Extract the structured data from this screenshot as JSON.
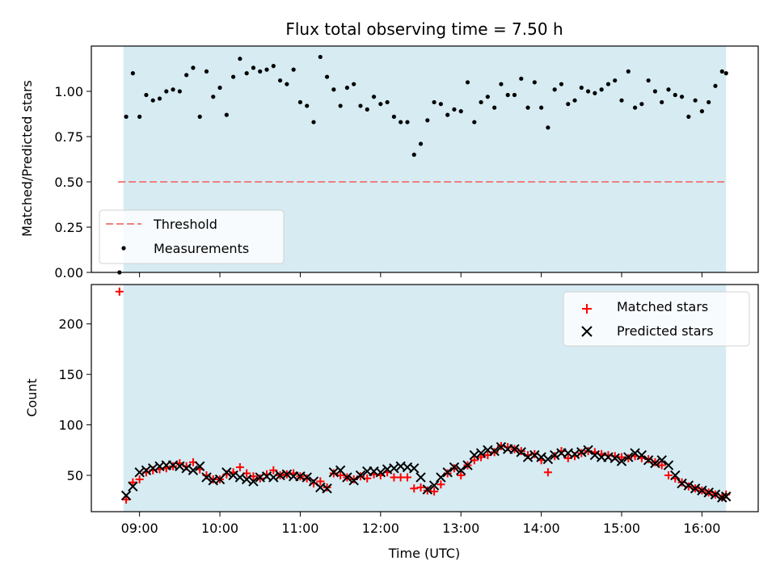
{
  "chart_data": [
    {
      "type": "scatter",
      "title": "Flux total observing time = 7.50 h",
      "xlabel": "Time (UTC)",
      "ylabel": "Matched/Predicted stars",
      "ylim": [
        0,
        1.25
      ],
      "yticks": [
        "0.00",
        "0.25",
        "0.50",
        "0.75",
        "1.00"
      ],
      "xlim_hours": [
        8.4,
        16.7
      ],
      "xticks": [
        "09:00",
        "10:00",
        "11:00",
        "12:00",
        "13:00",
        "14:00",
        "15:00",
        "16:00"
      ],
      "shaded_span": {
        "from": "08:48",
        "to": "16:18",
        "color": "#add8e6"
      },
      "threshold": {
        "name": "Threshold",
        "value": 0.5,
        "from": "08:44",
        "to": "16:18",
        "color": "#f08080",
        "style": "dashed"
      },
      "series": [
        {
          "name": "Measurements",
          "color": "#000000",
          "marker": "dot",
          "x": [
            "08:45",
            "08:50",
            "08:55",
            "09:00",
            "09:05",
            "09:10",
            "09:15",
            "09:20",
            "09:25",
            "09:30",
            "09:35",
            "09:40",
            "09:45",
            "09:50",
            "09:55",
            "10:00",
            "10:05",
            "10:10",
            "10:15",
            "10:20",
            "10:25",
            "10:30",
            "10:35",
            "10:40",
            "10:45",
            "10:50",
            "10:55",
            "11:00",
            "11:05",
            "11:10",
            "11:15",
            "11:20",
            "11:25",
            "11:30",
            "11:35",
            "11:40",
            "11:45",
            "11:50",
            "11:55",
            "12:00",
            "12:05",
            "12:10",
            "12:15",
            "12:20",
            "12:25",
            "12:30",
            "12:35",
            "12:40",
            "12:45",
            "12:50",
            "12:55",
            "13:00",
            "13:05",
            "13:10",
            "13:15",
            "13:20",
            "13:25",
            "13:30",
            "13:35",
            "13:40",
            "13:45",
            "13:50",
            "13:55",
            "14:00",
            "14:05",
            "14:10",
            "14:15",
            "14:20",
            "14:25",
            "14:30",
            "14:35",
            "14:40",
            "14:45",
            "14:50",
            "14:55",
            "15:00",
            "15:05",
            "15:10",
            "15:15",
            "15:20",
            "15:25",
            "15:30",
            "15:35",
            "15:40",
            "15:45",
            "15:50",
            "15:55",
            "16:00",
            "16:05",
            "16:10",
            "16:15",
            "16:18"
          ],
          "y": [
            0.0,
            0.86,
            1.1,
            0.86,
            0.98,
            0.95,
            0.96,
            1.0,
            1.01,
            1.0,
            1.09,
            1.13,
            0.86,
            1.11,
            0.97,
            1.02,
            0.87,
            1.08,
            1.18,
            1.1,
            1.13,
            1.11,
            1.12,
            1.14,
            1.06,
            1.04,
            1.12,
            0.94,
            0.92,
            0.83,
            1.19,
            1.08,
            1.01,
            0.92,
            1.02,
            1.04,
            0.92,
            0.9,
            0.97,
            0.93,
            0.94,
            0.86,
            0.83,
            0.83,
            0.65,
            0.71,
            0.84,
            0.94,
            0.93,
            0.87,
            0.9,
            0.89,
            1.05,
            0.83,
            0.94,
            0.97,
            0.91,
            1.04,
            0.98,
            0.98,
            1.07,
            0.91,
            1.05,
            0.91,
            0.8,
            1.01,
            1.04,
            0.93,
            0.95,
            1.02,
            1.0,
            0.99,
            1.01,
            1.04,
            1.06,
            0.95,
            1.11,
            0.91,
            0.93,
            1.06,
            1.0,
            0.94,
            1.01,
            0.98,
            0.97,
            0.86,
            0.95,
            0.89,
            0.94,
            1.03,
            1.11,
            1.1
          ]
        }
      ]
    },
    {
      "type": "scatter",
      "xlabel": "Time (UTC)",
      "ylabel": "Count",
      "ylim": [
        14,
        239
      ],
      "yticks": [
        "50",
        "100",
        "150",
        "200"
      ],
      "xlim_hours": [
        8.4,
        16.7
      ],
      "xticks": [
        "09:00",
        "10:00",
        "11:00",
        "12:00",
        "13:00",
        "14:00",
        "15:00",
        "16:00"
      ],
      "legend": "top-right",
      "shaded_span": {
        "from": "08:48",
        "to": "16:18",
        "color": "#add8e6"
      },
      "series": [
        {
          "name": "Matched stars",
          "color": "#ff0000",
          "marker": "plus",
          "x": [
            "08:45",
            "08:50",
            "08:55",
            "09:00",
            "09:05",
            "09:10",
            "09:15",
            "09:20",
            "09:25",
            "09:30",
            "09:35",
            "09:40",
            "09:45",
            "09:50",
            "09:55",
            "10:00",
            "10:05",
            "10:10",
            "10:15",
            "10:20",
            "10:25",
            "10:30",
            "10:35",
            "10:40",
            "10:45",
            "10:50",
            "10:55",
            "11:00",
            "11:05",
            "11:10",
            "11:15",
            "11:20",
            "11:25",
            "11:30",
            "11:35",
            "11:40",
            "11:45",
            "11:50",
            "11:55",
            "12:00",
            "12:05",
            "12:10",
            "12:15",
            "12:20",
            "12:25",
            "12:30",
            "12:35",
            "12:40",
            "12:45",
            "12:50",
            "12:55",
            "13:00",
            "13:05",
            "13:10",
            "13:15",
            "13:20",
            "13:25",
            "13:30",
            "13:35",
            "13:40",
            "13:45",
            "13:50",
            "13:55",
            "14:00",
            "14:05",
            "14:10",
            "14:15",
            "14:20",
            "14:25",
            "14:30",
            "14:35",
            "14:40",
            "14:45",
            "14:50",
            "14:55",
            "15:00",
            "15:05",
            "15:10",
            "15:15",
            "15:20",
            "15:25",
            "15:30",
            "15:35",
            "15:40",
            "15:45",
            "15:50",
            "15:55",
            "16:00",
            "16:05",
            "16:10",
            "16:15",
            "16:18"
          ],
          "y": [
            232,
            26,
            43,
            46,
            53,
            55,
            56,
            57,
            59,
            62,
            59,
            63,
            56,
            50,
            46,
            46,
            51,
            53,
            58,
            52,
            49,
            47,
            51,
            55,
            50,
            51,
            52,
            49,
            47,
            42,
            44,
            38,
            52,
            50,
            48,
            46,
            49,
            47,
            51,
            50,
            53,
            48,
            48,
            48,
            37,
            38,
            35,
            34,
            41,
            52,
            57,
            50,
            60,
            65,
            68,
            70,
            73,
            79,
            78,
            76,
            74,
            70,
            71,
            65,
            53,
            69,
            74,
            67,
            69,
            72,
            74,
            73,
            71,
            70,
            69,
            68,
            67,
            69,
            67,
            66,
            63,
            60,
            50,
            47,
            43,
            39,
            37,
            35,
            33,
            31,
            28,
            31
          ]
        },
        {
          "name": "Predicted stars",
          "color": "#000000",
          "marker": "x",
          "x": [
            "08:50",
            "08:55",
            "09:00",
            "09:05",
            "09:10",
            "09:15",
            "09:20",
            "09:25",
            "09:30",
            "09:35",
            "09:40",
            "09:45",
            "09:50",
            "09:55",
            "10:00",
            "10:05",
            "10:10",
            "10:15",
            "10:20",
            "10:25",
            "10:30",
            "10:35",
            "10:40",
            "10:45",
            "10:50",
            "10:55",
            "11:00",
            "11:05",
            "11:10",
            "11:15",
            "11:20",
            "11:25",
            "11:30",
            "11:35",
            "11:40",
            "11:45",
            "11:50",
            "11:55",
            "12:00",
            "12:05",
            "12:10",
            "12:15",
            "12:20",
            "12:25",
            "12:30",
            "12:35",
            "12:40",
            "12:45",
            "12:50",
            "12:55",
            "13:00",
            "13:05",
            "13:10",
            "13:15",
            "13:20",
            "13:25",
            "13:30",
            "13:35",
            "13:40",
            "13:45",
            "13:50",
            "13:55",
            "14:00",
            "14:05",
            "14:10",
            "14:15",
            "14:20",
            "14:25",
            "14:30",
            "14:35",
            "14:40",
            "14:45",
            "14:50",
            "14:55",
            "15:00",
            "15:05",
            "15:10",
            "15:15",
            "15:20",
            "15:25",
            "15:30",
            "15:35",
            "15:40",
            "15:45",
            "15:50",
            "15:55",
            "16:00",
            "16:05",
            "16:10",
            "16:15",
            "16:18"
          ],
          "y": [
            30,
            39,
            53,
            55,
            57,
            59,
            60,
            60,
            59,
            57,
            55,
            59,
            48,
            45,
            46,
            53,
            50,
            48,
            46,
            44,
            48,
            49,
            48,
            50,
            51,
            49,
            49,
            48,
            44,
            38,
            37,
            53,
            55,
            48,
            45,
            50,
            54,
            54,
            53,
            56,
            57,
            59,
            58,
            57,
            48,
            36,
            40,
            48,
            53,
            58,
            55,
            60,
            70,
            72,
            75,
            74,
            78,
            76,
            76,
            73,
            68,
            70,
            68,
            66,
            70,
            72,
            72,
            71,
            73,
            75,
            70,
            68,
            68,
            67,
            64,
            68,
            72,
            70,
            65,
            62,
            65,
            60,
            50,
            42,
            40,
            37,
            35,
            33,
            31,
            28,
            29
          ]
        }
      ]
    }
  ]
}
